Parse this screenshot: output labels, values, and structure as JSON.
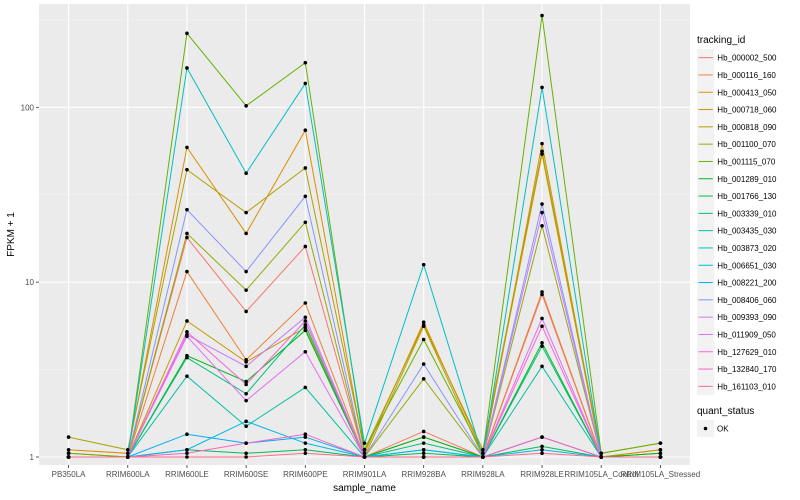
{
  "chart_data": {
    "type": "line",
    "xlabel": "sample_name",
    "ylabel": "FPKM + 1",
    "y_scale": "log10",
    "ylim": [
      0.9,
      390
    ],
    "yticks": [
      1,
      10,
      100
    ],
    "ytick_labels": [
      "1",
      "10",
      "100"
    ],
    "categories": [
      "PB350LA",
      "RRIM600LA",
      "RRIM600LE",
      "RRIM600SE",
      "RRIM600PE",
      "RRIM901LA",
      "RRIM928BA",
      "RRIM928LA",
      "RRIM928LE",
      "RRIM105LA_Control",
      "RRIM105LA_Stressed"
    ],
    "grid": true,
    "legend_position": "right",
    "legend_title": "tracking_id",
    "series": [
      {
        "name": "Hb_000002_500",
        "color": "#F8766D",
        "values": [
          1.0,
          1.0,
          18,
          6.8,
          16,
          1.0,
          1.4,
          1.0,
          8.5,
          1.0,
          1.1
        ]
      },
      {
        "name": "Hb_000116_160",
        "color": "#EC8239",
        "values": [
          1.05,
          1.0,
          11.5,
          3.6,
          7.6,
          1.0,
          1.3,
          1.0,
          8.8,
          1.0,
          1.0
        ]
      },
      {
        "name": "Hb_000413_050",
        "color": "#DB8E00",
        "values": [
          1.1,
          1.05,
          59,
          19,
          74,
          1.05,
          5.9,
          1.05,
          54,
          1.0,
          1.0
        ]
      },
      {
        "name": "Hb_000718_060",
        "color": "#C79800",
        "values": [
          1.0,
          1.0,
          6.0,
          3.5,
          5.5,
          1.0,
          5.6,
          1.0,
          62,
          1.0,
          1.1
        ]
      },
      {
        "name": "Hb_000818_090",
        "color": "#AFA100",
        "values": [
          1.3,
          1.1,
          44,
          25,
          45,
          1.1,
          5.7,
          1.1,
          56,
          1.05,
          1.2
        ]
      },
      {
        "name": "Hb_001100_070",
        "color": "#96A908",
        "values": [
          1.0,
          1.0,
          19,
          9.0,
          22,
          1.0,
          2.8,
          1.0,
          21,
          1.0,
          1.05
        ]
      },
      {
        "name": "Hb_001115_070",
        "color": "#64B200",
        "values": [
          1.05,
          1.0,
          265,
          102,
          180,
          1.1,
          4.7,
          1.05,
          335,
          1.05,
          1.2
        ]
      },
      {
        "name": "Hb_001289_010",
        "color": "#00B813",
        "values": [
          1.0,
          1.0,
          3.8,
          2.7,
          5.3,
          1.0,
          1.3,
          1.0,
          4.5,
          1.0,
          1.05
        ]
      },
      {
        "name": "Hb_001766_130",
        "color": "#00BC56",
        "values": [
          1.0,
          1.0,
          1.1,
          1.05,
          1.1,
          1.0,
          1.05,
          1.0,
          1.15,
          1.0,
          1.0
        ]
      },
      {
        "name": "Hb_003339_010",
        "color": "#00BF7D",
        "values": [
          1.0,
          1.0,
          3.7,
          2.3,
          5.7,
          1.0,
          1.2,
          1.0,
          4.3,
          1.0,
          1.0
        ]
      },
      {
        "name": "Hb_003435_030",
        "color": "#00C19F",
        "values": [
          1.0,
          1.0,
          2.9,
          1.5,
          2.5,
          1.0,
          1.1,
          1.0,
          3.3,
          1.0,
          1.0
        ]
      },
      {
        "name": "Hb_003873_020",
        "color": "#00BFC4",
        "values": [
          1.0,
          1.0,
          168,
          42,
          137,
          1.2,
          12.6,
          1.0,
          130,
          1.0,
          1.0
        ]
      },
      {
        "name": "Hb_006651_030",
        "color": "#00B8E5",
        "values": [
          1.0,
          1.0,
          1.1,
          1.6,
          1.2,
          1.0,
          1.1,
          1.0,
          1.1,
          1.0,
          1.0
        ]
      },
      {
        "name": "Hb_008221_200",
        "color": "#00ACFC",
        "values": [
          1.0,
          1.0,
          1.35,
          1.2,
          1.3,
          1.0,
          1.0,
          1.0,
          1.3,
          1.0,
          1.0
        ]
      },
      {
        "name": "Hb_008406_060",
        "color": "#8B93FF",
        "values": [
          1.0,
          1.0,
          26,
          11.5,
          31,
          1.0,
          3.4,
          1.0,
          28,
          1.0,
          1.0
        ]
      },
      {
        "name": "Hb_009393_090",
        "color": "#C77CFF",
        "values": [
          1.0,
          1.0,
          5.0,
          3.3,
          6.3,
          1.0,
          1.0,
          1.0,
          25,
          1.0,
          1.0
        ]
      },
      {
        "name": "Hb_011909_050",
        "color": "#E76BF3",
        "values": [
          1.0,
          1.0,
          4.9,
          2.1,
          4.0,
          1.0,
          1.0,
          1.0,
          6.2,
          1.0,
          1.0
        ]
      },
      {
        "name": "Hb_127629_010",
        "color": "#FA62DB",
        "values": [
          1.0,
          1.0,
          5.2,
          2.6,
          6.0,
          1.0,
          1.0,
          1.0,
          5.6,
          1.0,
          1.0
        ]
      },
      {
        "name": "Hb_132840_170",
        "color": "#FF62BC",
        "values": [
          1.0,
          1.0,
          1.05,
          1.2,
          1.35,
          1.0,
          1.0,
          1.0,
          1.3,
          1.0,
          1.0
        ]
      },
      {
        "name": "Hb_161103_010",
        "color": "#FF6C91",
        "values": [
          1.0,
          1.0,
          1.0,
          1.0,
          1.05,
          1.0,
          1.0,
          1.0,
          1.05,
          1.0,
          1.0
        ]
      }
    ],
    "points_legend": {
      "title": "quant_status",
      "entries": [
        "OK"
      ]
    }
  }
}
